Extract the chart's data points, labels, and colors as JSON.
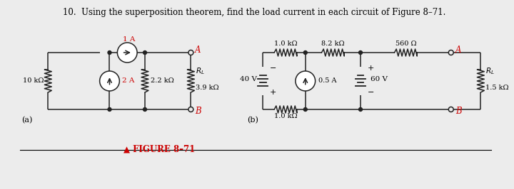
{
  "title": "10.  Using the superposition theorem, find the load current in each circuit of Figure 8–71.",
  "title_fontsize": 8.5,
  "bg_color": "#ececec",
  "label_a_color": "#cc0000",
  "label_b_color": "#cc0000",
  "fig_label": "▲ FIGURE 8–71",
  "fig_label_color": "#cc0000",
  "circuit_a_label": "(a)",
  "circuit_b_label": "(b)",
  "line_color": "#222222"
}
